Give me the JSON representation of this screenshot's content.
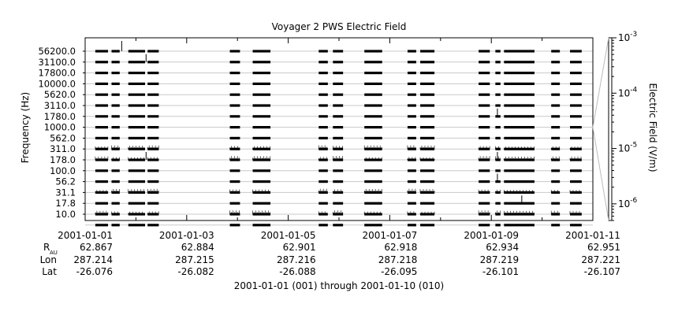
{
  "chart_data": {
    "type": "line",
    "title": "Voyager 2 PWS Electric Field",
    "ylabel": "Frequency (Hz)",
    "colorbar_label": "Electric Field (V/m)",
    "colorbar_scale": "log",
    "colorbar_range": [
      5e-07,
      0.001
    ],
    "colorbar_ticks": [
      {
        "value": 0.001,
        "mantissa": "10",
        "exp": "-3"
      },
      {
        "value": 0.0001,
        "mantissa": "10",
        "exp": "-4"
      },
      {
        "value": 1e-05,
        "mantissa": "10",
        "exp": "-5"
      },
      {
        "value": 1e-06,
        "mantissa": "10",
        "exp": "-6"
      }
    ],
    "channels": [
      "56200.0",
      "31100.0",
      "17800.0",
      "10000.0",
      "5620.0",
      "3110.0",
      "1780.0",
      "1000.0",
      "562.0",
      "311.0",
      "178.0",
      "100.0",
      "56.2",
      "31.1",
      "17.8",
      "10.0"
    ],
    "xlim": [
      "2001-01-01",
      "2001-01-11"
    ],
    "x_ticks": [
      "2001-01-01",
      "2001-01-03",
      "2001-01-05",
      "2001-01-07",
      "2001-01-09",
      "2001-01-11"
    ],
    "data_segments_days": [
      [
        0.2,
        0.45
      ],
      [
        0.52,
        0.68
      ],
      [
        0.85,
        1.18
      ],
      [
        1.23,
        1.45
      ],
      [
        2.85,
        3.05
      ],
      [
        3.3,
        3.65
      ],
      [
        4.6,
        4.78
      ],
      [
        4.88,
        5.08
      ],
      [
        5.5,
        5.85
      ],
      [
        6.35,
        6.52
      ],
      [
        6.6,
        6.88
      ],
      [
        7.75,
        7.97
      ],
      [
        8.08,
        8.18
      ],
      [
        8.25,
        8.85
      ],
      [
        9.18,
        9.35
      ],
      [
        9.55,
        9.78
      ]
    ],
    "spikes": [
      {
        "day": 0.72,
        "channel_index": 0
      },
      {
        "day": 1.2,
        "channel_index": 1
      },
      {
        "day": 1.2,
        "channel_index": 10
      },
      {
        "day": 8.12,
        "channel_index": 6
      },
      {
        "day": 8.12,
        "channel_index": 12
      },
      {
        "day": 8.12,
        "channel_index": 10
      },
      {
        "day": 8.6,
        "channel_index": 14
      }
    ],
    "ephemeris": {
      "labels": {
        "r": "R",
        "r_sub": "AU",
        "lon": "Lon",
        "lat": "Lat"
      },
      "R": [
        "62.867",
        "62.884",
        "62.901",
        "62.918",
        "62.934",
        "62.951"
      ],
      "Lon": [
        "287.214",
        "287.215",
        "287.216",
        "287.218",
        "287.219",
        "287.221"
      ],
      "Lat": [
        "-26.076",
        "-26.082",
        "-26.088",
        "-26.095",
        "-26.101",
        "-26.107"
      ]
    },
    "xlabel": "2001-01-01 (001) through 2001-01-10 (010)"
  }
}
